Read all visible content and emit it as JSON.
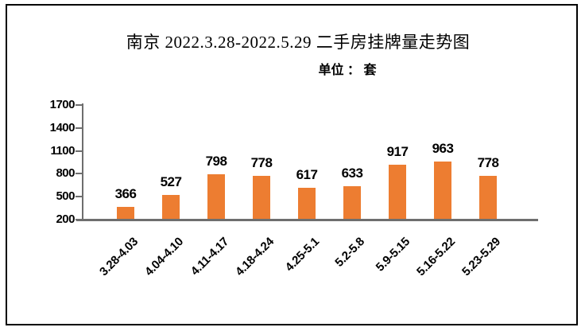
{
  "chart_data": {
    "type": "bar",
    "title": "南京 2022.3.28-2022.5.29 二手房挂牌量走势图",
    "unit_label": "单位 ： 套",
    "categories": [
      "3.28-4.03",
      "4.04-4.10",
      "4.11-4.17",
      "4.18-4.24",
      "4.25-5.1",
      "5.2-5.8",
      "5.9-5.15",
      "5.16-5.22",
      "5.23-5.29"
    ],
    "values": [
      366,
      527,
      798,
      778,
      617,
      633,
      917,
      963,
      778
    ],
    "y_ticks": [
      1700,
      1400,
      1100,
      800,
      500,
      200
    ],
    "ylim": [
      200,
      1700
    ],
    "xlabel": "",
    "ylabel": "",
    "grid": false,
    "legend": "none",
    "value_labels": true,
    "bar_color": "#ED7D31",
    "axis_color": "#6E6E6E",
    "text_color": "#000000",
    "border_color": "#000000",
    "background_color": "#FFFFFF"
  }
}
